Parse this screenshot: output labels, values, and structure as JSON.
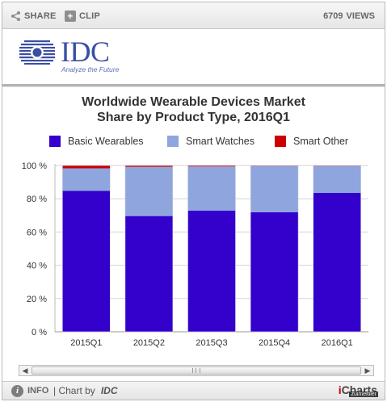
{
  "toolbar": {
    "share_label": "SHARE",
    "clip_label": "CLIP",
    "views_count": "6709",
    "views_label": "VIEWS"
  },
  "logo": {
    "brand": "IDC",
    "tagline": "Analyze the Future"
  },
  "footer": {
    "info_label": "INFO",
    "chart_by": "| Chart by",
    "chart_by_brand": "IDC",
    "ichart_i": "i",
    "ichart_rest": "Charts",
    "watermark": "zuimeitiler"
  },
  "colors": {
    "basic": "#3300cc",
    "smart_watches": "#8ea6dd",
    "smart_other": "#cc0000",
    "grid": "#d3d3d3"
  },
  "chart_data": {
    "type": "bar",
    "stacked": true,
    "title_line1": "Worldwide Wearable Devices Market",
    "title_line2": "Share by Product Type, 2016Q1",
    "categories": [
      "2015Q1",
      "2015Q2",
      "2015Q3",
      "2015Q4",
      "2016Q1"
    ],
    "series": [
      {
        "name": "Basic Wearables",
        "values": [
          84.7,
          69.6,
          72.9,
          71.9,
          83.5
        ]
      },
      {
        "name": "Smart Watches",
        "values": [
          13.6,
          29.6,
          26.5,
          27.8,
          16.2
        ]
      },
      {
        "name": "Smart Other",
        "values": [
          1.7,
          0.8,
          0.6,
          0.3,
          0.3
        ]
      }
    ],
    "y_ticks": [
      "0 %",
      "20 %",
      "40 %",
      "60 %",
      "80 %",
      "100 %"
    ],
    "ylim": [
      0,
      100
    ],
    "grid": true,
    "legend_position": "top"
  }
}
